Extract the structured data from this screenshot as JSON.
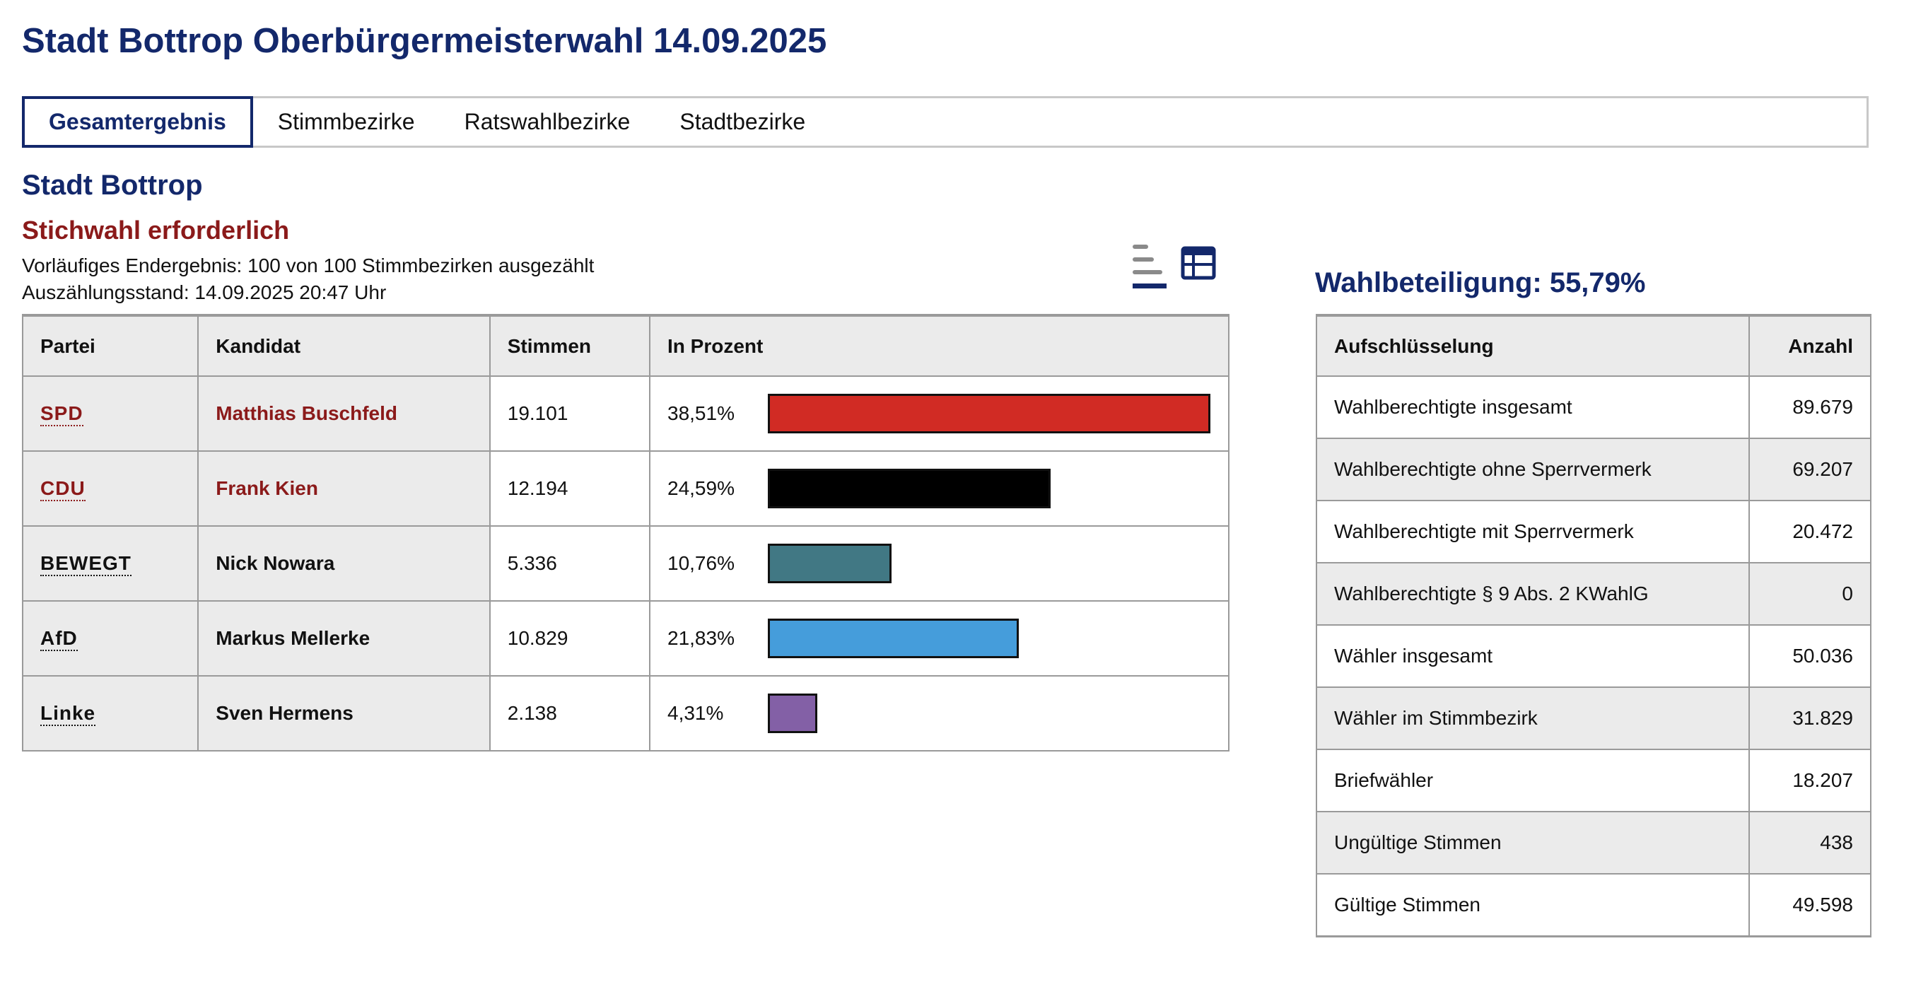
{
  "page": {
    "title": "Stadt Bottrop Oberbürgermeisterwahl 14.09.2025"
  },
  "tabs": [
    {
      "label": "Gesamtergebnis",
      "active": true
    },
    {
      "label": "Stimmbezirke",
      "active": false
    },
    {
      "label": "Ratswahlbezirke",
      "active": false
    },
    {
      "label": "Stadtbezirke",
      "active": false
    }
  ],
  "region": {
    "title": "Stadt Bottrop",
    "status": "Stichwahl erforderlich",
    "progress_text": "Vorläufiges Endergebnis: 100 von 100 Stimmbezirken ausgezählt",
    "count_time": "Auszählungsstand: 14.09.2025 20:47 Uhr"
  },
  "view_toggle": {
    "chart_icon": "bar-chart-icon",
    "table_icon": "table-icon"
  },
  "results": {
    "headers": {
      "party": "Partei",
      "candidate": "Kandidat",
      "votes": "Stimmen",
      "percent": "In Prozent"
    },
    "rows": [
      {
        "party": "SPD",
        "candidate": "Matthias Buschfeld",
        "votes": "19.101",
        "percent_text": "38,51%",
        "percent": 38.51,
        "color": "#d12b24",
        "highlight": true
      },
      {
        "party": "CDU",
        "candidate": "Frank Kien",
        "votes": "12.194",
        "percent_text": "24,59%",
        "percent": 24.59,
        "color": "#000000",
        "highlight": true
      },
      {
        "party": "BEWEGT",
        "candidate": "Nick Nowara",
        "votes": "5.336",
        "percent_text": "10,76%",
        "percent": 10.76,
        "color": "#417884",
        "highlight": false
      },
      {
        "party": "AfD",
        "candidate": "Markus Mellerke",
        "votes": "10.829",
        "percent_text": "21,83%",
        "percent": 21.83,
        "color": "#459ddb",
        "highlight": false
      },
      {
        "party": "Linke",
        "candidate": "Sven Hermens",
        "votes": "2.138",
        "percent_text": "4,31%",
        "percent": 4.31,
        "color": "#8360a6",
        "highlight": false
      }
    ]
  },
  "turnout": {
    "label": "Wahlbeteiligung: 55,79%"
  },
  "breakdown": {
    "headers": {
      "label": "Aufschlüsselung",
      "count": "Anzahl"
    },
    "rows": [
      {
        "label": "Wahlberechtigte insgesamt",
        "value": "89.679"
      },
      {
        "label": "Wahlberechtigte ohne Sperrvermerk",
        "value": "69.207"
      },
      {
        "label": "Wahlberechtigte mit Sperrvermerk",
        "value": "20.472"
      },
      {
        "label": "Wahlberechtigte § 9 Abs. 2 KWahlG",
        "value": "0"
      },
      {
        "label": "Wähler insgesamt",
        "value": "50.036"
      },
      {
        "label": "Wähler im Stimmbezirk",
        "value": "31.829"
      },
      {
        "label": "Briefwähler",
        "value": "18.207"
      },
      {
        "label": "Ungültige Stimmen",
        "value": "438"
      },
      {
        "label": "Gültige Stimmen",
        "value": "49.598"
      }
    ]
  },
  "colors": {
    "primary": "#13286b",
    "alert": "#8b1a1a",
    "row_shade": "#ebebeb",
    "border": "#9a9a9a"
  }
}
